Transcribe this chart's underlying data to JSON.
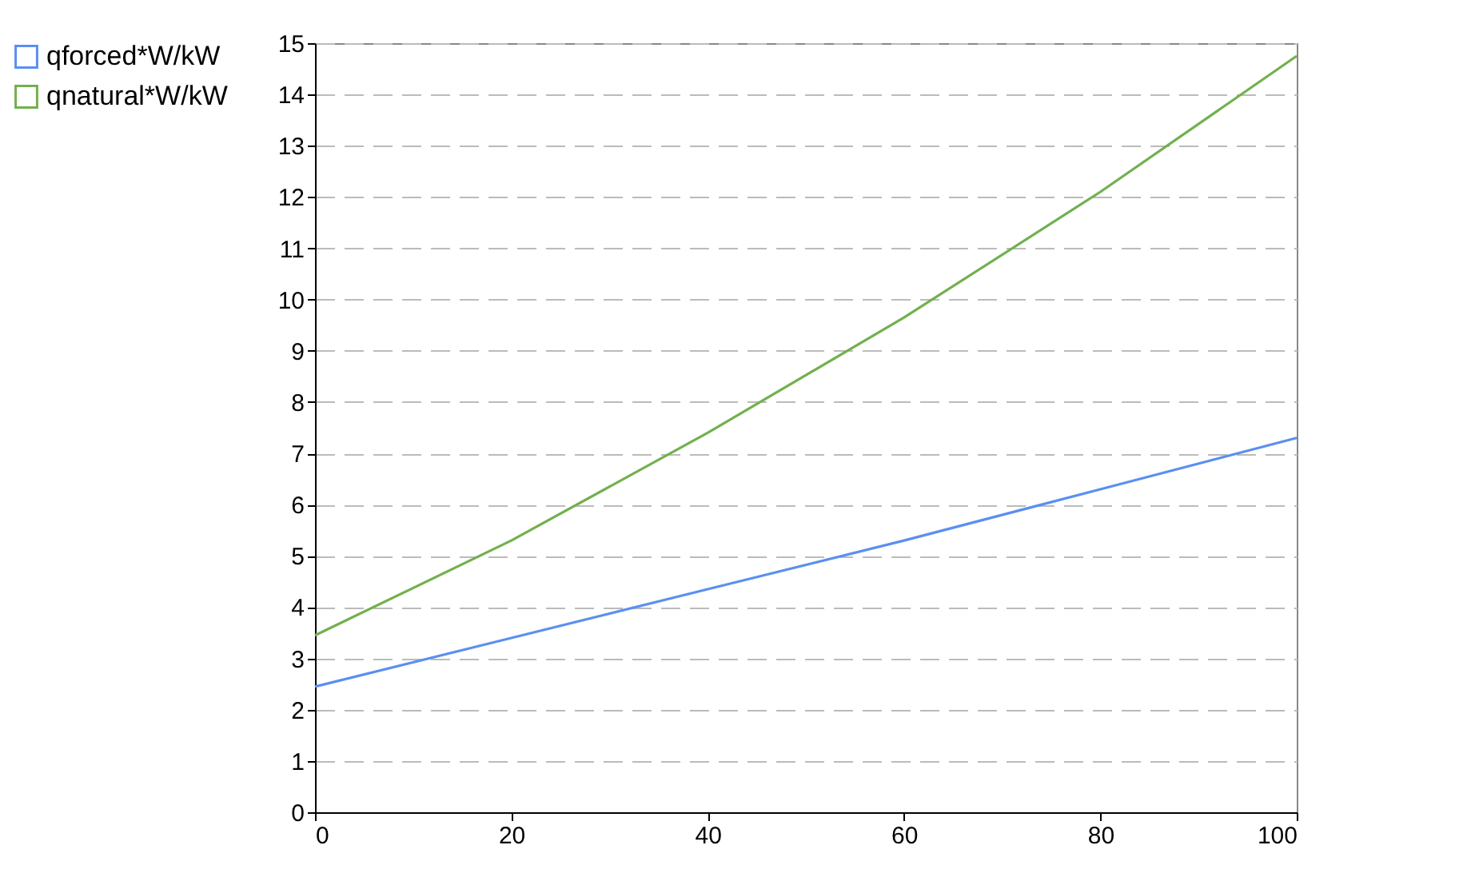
{
  "chart_data": {
    "type": "line",
    "x": [
      0,
      20,
      40,
      60,
      80,
      100
    ],
    "series": [
      {
        "name": "qforced*W/kW",
        "color": "#5b8ff0",
        "values": [
          2.45,
          3.4,
          4.35,
          5.3,
          6.3,
          7.3
        ]
      },
      {
        "name": "qnatural*W/kW",
        "color": "#72b04e",
        "values": [
          3.45,
          5.3,
          7.4,
          9.65,
          12.1,
          14.75
        ]
      }
    ],
    "xlim": [
      0,
      100
    ],
    "xticks": [
      0,
      20,
      40,
      60,
      80,
      100
    ],
    "ylim": [
      0,
      15
    ],
    "yticks": [
      0,
      1,
      2,
      3,
      4,
      5,
      6,
      7,
      8,
      9,
      10,
      11,
      12,
      13,
      14,
      15
    ],
    "grid": "y",
    "legend": "top left",
    "line_style": "solid",
    "marker": "none"
  }
}
